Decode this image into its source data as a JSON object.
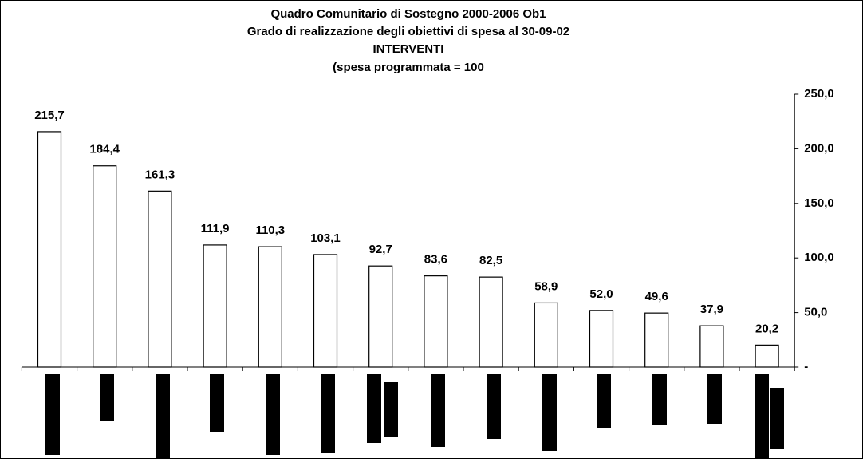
{
  "chart_data": {
    "type": "bar",
    "title_lines": [
      "Quadro Comunitario di Sostegno 2000-2006 Ob1",
      "Grado di realizzazione degli obiettivi di spesa al 30-09-02",
      "INTERVENTI",
      "(spesa programmata = 100"
    ],
    "categories": [
      null,
      null,
      null,
      null,
      null,
      null,
      null,
      null,
      null,
      null,
      null,
      null,
      null,
      null
    ],
    "values": [
      215.7,
      184.4,
      161.3,
      111.9,
      110.3,
      103.1,
      92.7,
      83.6,
      82.5,
      58.9,
      52.0,
      49.6,
      37.9,
      20.2
    ],
    "value_labels": [
      "215,7",
      "184,4",
      "161,3",
      "111,9",
      "110,3",
      "103,1",
      "92,7",
      "83,6",
      "82,5",
      "58,9",
      "52,0",
      "49,6",
      "37,9",
      "20,2"
    ],
    "color": "#ffffff",
    "ylim": [
      0,
      250
    ],
    "yticks": [
      {
        "value": 0,
        "label": "-"
      },
      {
        "value": 50,
        "label": "50,0"
      },
      {
        "value": 100,
        "label": "100,0"
      },
      {
        "value": 150,
        "label": "150,0"
      },
      {
        "value": 200,
        "label": "200,0"
      },
      {
        "value": 250,
        "label": "250,0"
      }
    ],
    "y_axis_side": "right",
    "grid": false
  }
}
